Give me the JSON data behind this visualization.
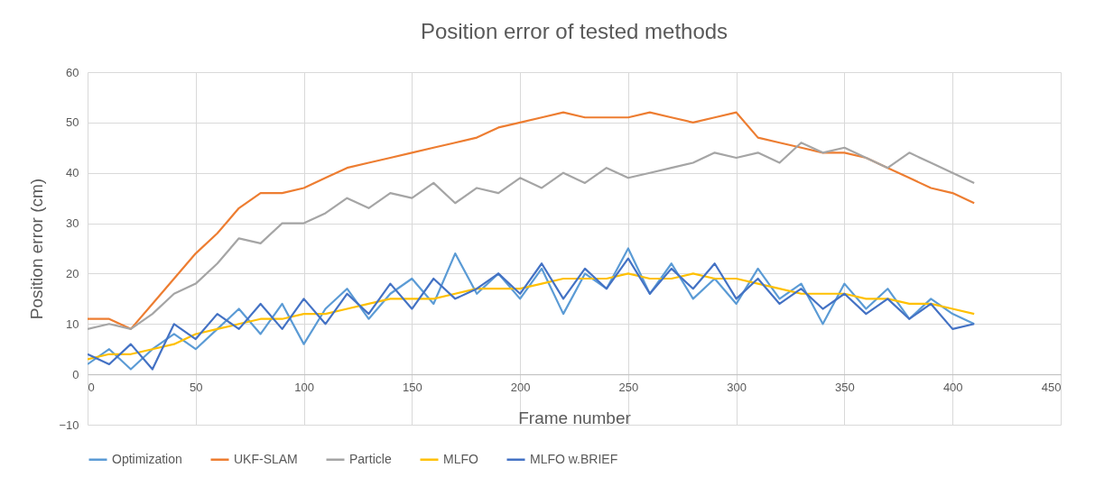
{
  "chart_data": {
    "type": "line",
    "title": "Position error of tested methods",
    "xlabel": "Frame number",
    "ylabel": "Position error (cm)",
    "x": [
      0,
      10,
      20,
      30,
      40,
      50,
      60,
      70,
      80,
      90,
      100,
      110,
      120,
      130,
      140,
      150,
      160,
      170,
      180,
      190,
      200,
      210,
      220,
      230,
      240,
      250,
      260,
      270,
      280,
      290,
      300,
      310,
      320,
      330,
      340,
      350,
      360,
      370,
      380,
      390,
      400,
      410
    ],
    "series": [
      {
        "name": "Optimization",
        "color": "#5b9bd5",
        "values": [
          2,
          5,
          1,
          5,
          8,
          5,
          9,
          13,
          8,
          14,
          6,
          13,
          17,
          11,
          16,
          19,
          14,
          24,
          16,
          20,
          15,
          21,
          12,
          20,
          17,
          25,
          16,
          22,
          15,
          19,
          14,
          21,
          15,
          18,
          10,
          18,
          13,
          17,
          11,
          15,
          12,
          10
        ]
      },
      {
        "name": "UKF-SLAM",
        "color": "#ed7d31",
        "values": [
          11,
          11,
          9,
          14,
          19,
          24,
          28,
          33,
          36,
          36,
          37,
          39,
          41,
          42,
          43,
          44,
          45,
          46,
          47,
          49,
          50,
          51,
          52,
          51,
          51,
          51,
          52,
          51,
          50,
          51,
          52,
          47,
          46,
          45,
          44,
          44,
          43,
          41,
          39,
          37,
          36,
          34
        ]
      },
      {
        "name": "Particle",
        "color": "#a5a5a5",
        "values": [
          9,
          10,
          9,
          12,
          16,
          18,
          22,
          27,
          26,
          30,
          30,
          32,
          35,
          33,
          36,
          35,
          38,
          34,
          37,
          36,
          39,
          37,
          40,
          38,
          41,
          39,
          40,
          41,
          42,
          44,
          43,
          44,
          42,
          46,
          44,
          45,
          43,
          41,
          44,
          42,
          40,
          38
        ]
      },
      {
        "name": "MLFO",
        "color": "#ffc000",
        "values": [
          3,
          4,
          4,
          5,
          6,
          8,
          9,
          10,
          11,
          11,
          12,
          12,
          13,
          14,
          15,
          15,
          15,
          16,
          17,
          17,
          17,
          18,
          19,
          19,
          19,
          20,
          19,
          19,
          20,
          19,
          19,
          18,
          17,
          16,
          16,
          16,
          15,
          15,
          14,
          14,
          13,
          12
        ]
      },
      {
        "name": "MLFO w.BRIEF",
        "color": "#4472c4",
        "values": [
          4,
          2,
          6,
          1,
          10,
          7,
          12,
          9,
          14,
          9,
          15,
          10,
          16,
          12,
          18,
          13,
          19,
          15,
          17,
          20,
          16,
          22,
          15,
          21,
          17,
          23,
          16,
          21,
          17,
          22,
          15,
          19,
          14,
          17,
          13,
          16,
          12,
          15,
          11,
          14,
          9,
          10
        ]
      }
    ],
    "xlim": [
      0,
      450
    ],
    "xticks": [
      0,
      50,
      100,
      150,
      200,
      250,
      300,
      350,
      400,
      450
    ],
    "ylim": [
      -10,
      60
    ],
    "yticks": [
      -10,
      0,
      10,
      20,
      30,
      40,
      50,
      60
    ],
    "grid": true,
    "legend": "bottom",
    "marker": "none",
    "line_style": "solid"
  }
}
